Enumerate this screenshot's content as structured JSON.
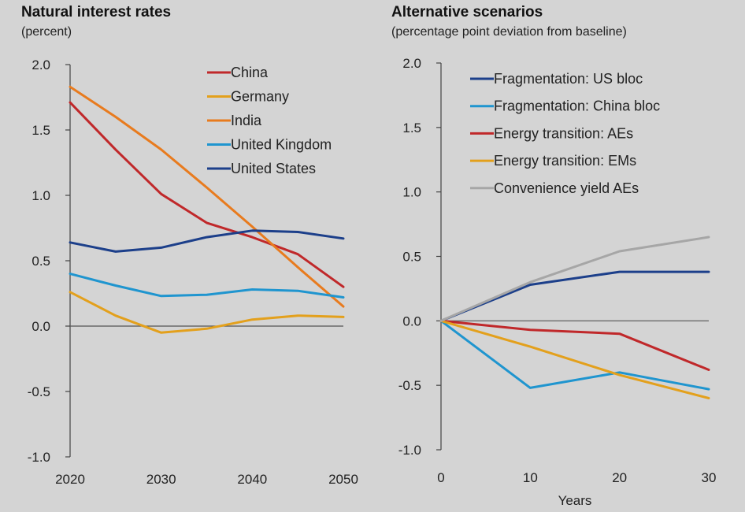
{
  "chart_data": [
    {
      "type": "line",
      "title": "Natural interest rates",
      "subtitle": "(percent)",
      "xlabel": "",
      "ylabel": "",
      "x": [
        2020,
        2025,
        2030,
        2035,
        2040,
        2045,
        2050
      ],
      "xticks": [
        "2020",
        "2030",
        "2040",
        "2050"
      ],
      "yticks": [
        "2.0",
        "1.5",
        "1.0",
        "0.5",
        "0.0",
        "-0.5",
        "-1.0"
      ],
      "ylim": [
        -1.0,
        2.0
      ],
      "xlim": [
        2020,
        2050
      ],
      "legend_position": "top-right",
      "series": [
        {
          "name": "China",
          "color": "#c0282a",
          "values": [
            1.71,
            1.35,
            1.01,
            0.79,
            0.68,
            0.55,
            0.3
          ]
        },
        {
          "name": "Germany",
          "color": "#e3a01c",
          "values": [
            0.26,
            0.08,
            -0.05,
            -0.02,
            0.05,
            0.08,
            0.07
          ]
        },
        {
          "name": "India",
          "color": "#e87b1e",
          "values": [
            1.83,
            1.6,
            1.35,
            1.06,
            0.76,
            0.45,
            0.15
          ]
        },
        {
          "name": "United Kingdom",
          "color": "#1f95cf",
          "values": [
            0.4,
            0.31,
            0.23,
            0.24,
            0.28,
            0.27,
            0.22
          ]
        },
        {
          "name": "United States",
          "color": "#1c3f8a",
          "values": [
            0.64,
            0.57,
            0.6,
            0.68,
            0.73,
            0.72,
            0.67
          ]
        }
      ]
    },
    {
      "type": "line",
      "title": "Alternative scenarios",
      "subtitle": "(percentage point deviation from baseline)",
      "xlabel": "Years",
      "ylabel": "",
      "x": [
        0,
        10,
        20,
        30
      ],
      "xticks": [
        "0",
        "10",
        "20",
        "30"
      ],
      "yticks": [
        "2.0",
        "1.5",
        "1.0",
        "0.5",
        "0.0",
        "-0.5",
        "-1.0"
      ],
      "ylim": [
        -1.0,
        2.0
      ],
      "xlim": [
        0,
        30
      ],
      "legend_position": "top-left",
      "series": [
        {
          "name": "Fragmentation: US bloc",
          "color": "#1c3f8a",
          "values": [
            0.0,
            0.28,
            0.38,
            0.38
          ]
        },
        {
          "name": "Fragmentation: China bloc",
          "color": "#1f95cf",
          "values": [
            0.0,
            -0.52,
            -0.4,
            -0.53
          ]
        },
        {
          "name": "Energy transition: AEs",
          "color": "#c0282a",
          "values": [
            0.0,
            -0.07,
            -0.1,
            -0.38
          ]
        },
        {
          "name": "Energy transition: EMs",
          "color": "#e3a01c",
          "values": [
            0.0,
            -0.2,
            -0.42,
            -0.6
          ]
        },
        {
          "name": "Convenience yield AEs",
          "color": "#a6a6a6",
          "values": [
            0.0,
            0.3,
            0.54,
            0.65
          ]
        }
      ]
    }
  ]
}
